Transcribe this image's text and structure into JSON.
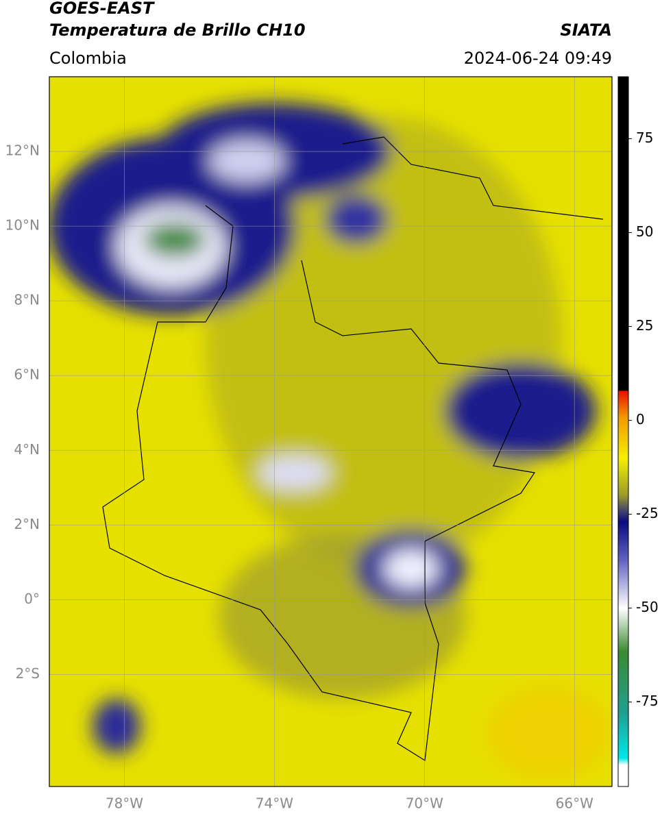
{
  "header": {
    "satellite": "GOES-EAST",
    "product": "Temperatura de Brillo CH10",
    "source": "SIATA",
    "region": "Colombia",
    "datetime": "2024-06-24 09:49"
  },
  "map": {
    "xlim": [
      -80,
      -65
    ],
    "ylim": [
      -5,
      14
    ],
    "xticks": [
      {
        "value": -78,
        "label": "78°W"
      },
      {
        "value": -74,
        "label": "74°W"
      },
      {
        "value": -70,
        "label": "70°W"
      },
      {
        "value": -66,
        "label": "66°W"
      }
    ],
    "yticks": [
      {
        "value": 12,
        "label": "12°N"
      },
      {
        "value": 10,
        "label": "10°N"
      },
      {
        "value": 8,
        "label": "8°N"
      },
      {
        "value": 6,
        "label": "6°N"
      },
      {
        "value": 4,
        "label": "4°N"
      },
      {
        "value": 2,
        "label": "2°N"
      },
      {
        "value": 0,
        "label": "0°"
      },
      {
        "value": -2,
        "label": "2°S"
      }
    ]
  },
  "colorbar": {
    "lim": [
      -97.5,
      91.5
    ],
    "ticks": [
      75,
      50,
      25,
      0,
      -25,
      -50,
      -75
    ]
  }
}
